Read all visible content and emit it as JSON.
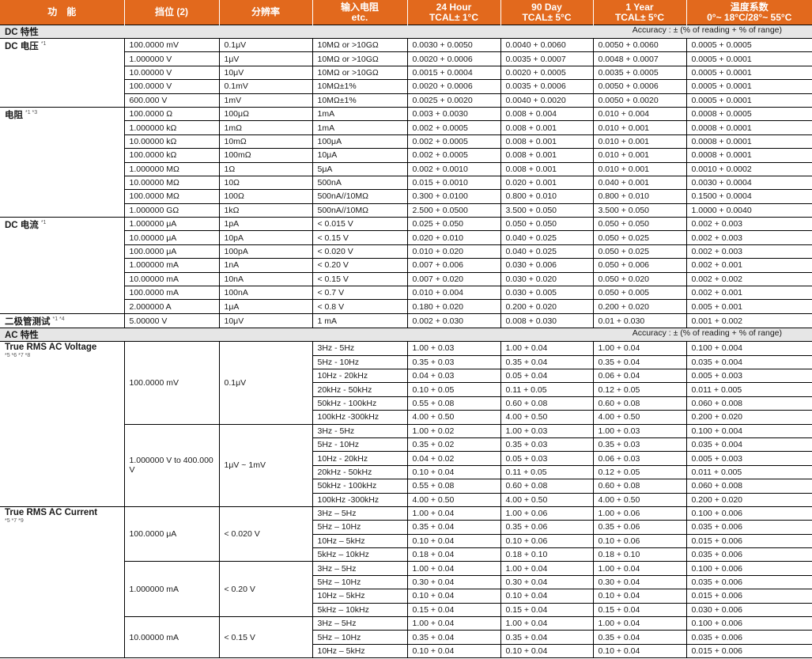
{
  "header": [
    "功　能",
    "挡位 (2)",
    "分辨率",
    "输入电阻\netc.",
    "24 Hour\nTCAL± 1°C",
    "90 Day\nTCAL± 5°C",
    "1 Year\nTCAL± 5°C",
    "温度系数\n0°~ 18°C/28°~ 55°C"
  ],
  "colors": {
    "header_bg": "#e2691d",
    "section_bg": "#e6e6e6"
  },
  "sections": [
    {
      "title": "DC 特性",
      "note": "Accuracy : ± (% of reading + % of range)",
      "groups": [
        {
          "function": "DC 电压",
          "sup": "*1",
          "rows": [
            [
              "100.0000 mV",
              "0.1μV",
              "10MΩ or >10GΩ",
              "0.0030 + 0.0050",
              "0.0040 + 0.0060",
              "0.0050 + 0.0060",
              "0.0005 + 0.0005"
            ],
            [
              "1.000000 V",
              "1μV",
              "10MΩ or >10GΩ",
              "0.0020 + 0.0006",
              "0.0035 + 0.0007",
              "0.0048 + 0.0007",
              "0.0005 + 0.0001"
            ],
            [
              "10.00000 V",
              "10μV",
              "10MΩ or >10GΩ",
              "0.0015 + 0.0004",
              "0.0020 + 0.0005",
              "0.0035 + 0.0005",
              "0.0005 + 0.0001"
            ],
            [
              "100.0000 V",
              "0.1mV",
              "10MΩ±1%",
              "0.0020 + 0.0006",
              "0.0035 + 0.0006",
              "0.0050 + 0.0006",
              "0.0005 + 0.0001"
            ],
            [
              "600.000 V",
              "1mV",
              "10MΩ±1%",
              "0.0025 + 0.0020",
              "0.0040 + 0.0020",
              "0.0050 + 0.0020",
              "0.0005 + 0.0001"
            ]
          ]
        },
        {
          "function": "电阻",
          "sup": "*1 *3",
          "rows": [
            [
              "100.0000 Ω",
              "100μΩ",
              "1mA",
              "0.003 + 0.0030",
              "0.008 + 0.004",
              "0.010 + 0.004",
              "0.0008 + 0.0005"
            ],
            [
              "1.000000 kΩ",
              "1mΩ",
              "1mA",
              "0.002 + 0.0005",
              "0.008 + 0.001",
              "0.010 + 0.001",
              "0.0008 + 0.0001"
            ],
            [
              "10.00000 kΩ",
              "10mΩ",
              "100μA",
              "0.002 + 0.0005",
              "0.008 + 0.001",
              "0.010 + 0.001",
              "0.0008 + 0.0001"
            ],
            [
              "100.0000 kΩ",
              "100mΩ",
              "10μA",
              "0.002 + 0.0005",
              "0.008 + 0.001",
              "0.010 + 0.001",
              "0.0008 + 0.0001"
            ],
            [
              "1.000000 MΩ",
              "1Ω",
              "5μA",
              "0.002 + 0.0010",
              "0.008 + 0.001",
              "0.010 + 0.001",
              "0.0010 + 0.0002"
            ],
            [
              "10.00000 MΩ",
              "10Ω",
              "500nA",
              "0.015 + 0.0010",
              "0.020 + 0.001",
              "0.040 + 0.001",
              "0.0030 + 0.0004"
            ],
            [
              "100.0000 MΩ",
              "100Ω",
              "500nA//10MΩ",
              "0.300 + 0.0100",
              "0.800 + 0.010",
              "0.800 + 0.010",
              "0.1500 + 0.0004"
            ],
            [
              "1.000000 GΩ",
              "1kΩ",
              "500nA//10MΩ",
              "2.500 + 0.0500",
              "3.500 + 0.050",
              "3.500 + 0.050",
              "1.0000 + 0.0040"
            ]
          ]
        },
        {
          "function": "DC 电流",
          "sup": "*1",
          "rows": [
            [
              "1.000000 μA",
              "1pA",
              "< 0.015 V",
              "0.025 + 0.050",
              "0.050 + 0.050",
              "0.050 + 0.050",
              "0.002 + 0.003"
            ],
            [
              "10.00000 μA",
              "10pA",
              "< 0.15 V",
              "0.020 + 0.010",
              "0.040 + 0.025",
              "0.050 + 0.025",
              "0.002 + 0.003"
            ],
            [
              "100.0000 μA",
              "100pA",
              "< 0.020 V",
              "0.010 + 0.020",
              "0.040 + 0.025",
              "0.050 + 0.025",
              "0.002 + 0.003"
            ],
            [
              "1.000000 mA",
              "1nA",
              "< 0.20 V",
              "0.007 + 0.006",
              "0.030 + 0.006",
              "0.050 + 0.006",
              "0.002 + 0.001"
            ],
            [
              "10.00000 mA",
              "10nA",
              "< 0.15 V",
              "0.007 + 0.020",
              "0.030 + 0.020",
              "0.050 + 0.020",
              "0.002 + 0.002"
            ],
            [
              "100.0000 mA",
              "100nA",
              "< 0.7 V",
              "0.010 + 0.004",
              "0.030 + 0.005",
              "0.050 + 0.005",
              "0.002 + 0.001"
            ],
            [
              "2.000000 A",
              "1μA",
              "< 0.8 V",
              "0.180 + 0.020",
              "0.200 + 0.020",
              "0.200 + 0.020",
              "0.005 + 0.001"
            ]
          ]
        },
        {
          "function": "二极管测试",
          "sup": "*1 *4",
          "rows": [
            [
              "5.00000 V",
              "10μV",
              "1 mA",
              "0.002 + 0.030",
              "0.008 + 0.030",
              "0.01 + 0.030",
              "0.001 + 0.002"
            ]
          ]
        }
      ]
    },
    {
      "title": "AC 特性",
      "note": "Accuracy : ± (% of reading + % of range)",
      "groups": [
        {
          "function": "True RMS AC Voltage",
          "sup": "*5 *6 *7 *8",
          "subgroups": [
            {
              "range": "100.0000 mV",
              "resolution": "0.1μV",
              "rows": [
                [
                  "3Hz - 5Hz",
                  "1.00 + 0.03",
                  "1.00 + 0.04",
                  "1.00 + 0.04",
                  "0.100 + 0.004"
                ],
                [
                  "5Hz - 10Hz",
                  "0.35 + 0.03",
                  "0.35 + 0.04",
                  "0.35 + 0.04",
                  "0.035 + 0.004"
                ],
                [
                  "10Hz - 20kHz",
                  "0.04 + 0.03",
                  "0.05 + 0.04",
                  "0.06 + 0.04",
                  "0.005 + 0.003"
                ],
                [
                  "20kHz - 50kHz",
                  "0.10 + 0.05",
                  "0.11 + 0.05",
                  "0.12 + 0.05",
                  "0.011 + 0.005"
                ],
                [
                  "50kHz - 100kHz",
                  "0.55 + 0.08",
                  "0.60 + 0.08",
                  "0.60 + 0.08",
                  "0.060 + 0.008"
                ],
                [
                  "100kHz -300kHz",
                  "4.00 + 0.50",
                  "4.00 + 0.50",
                  "4.00 + 0.50",
                  "0.200 + 0.020"
                ]
              ]
            },
            {
              "range": "1.000000 V  to 400.000 V",
              "resolution": "1μV ~ 1mV",
              "rows": [
                [
                  "3Hz - 5Hz",
                  "1.00 + 0.02",
                  "1.00 + 0.03",
                  "1.00 + 0.03",
                  "0.100 + 0.004"
                ],
                [
                  "5Hz - 10Hz",
                  "0.35 + 0.02",
                  "0.35 + 0.03",
                  "0.35 + 0.03",
                  "0.035 + 0.004"
                ],
                [
                  "10Hz - 20kHz",
                  "0.04 + 0.02",
                  "0.05 + 0.03",
                  "0.06 + 0.03",
                  "0.005 + 0.003"
                ],
                [
                  "20kHz - 50kHz",
                  "0.10 + 0.04",
                  "0.11 + 0.05",
                  "0.12 + 0.05",
                  "0.011 + 0.005"
                ],
                [
                  "50kHz - 100kHz",
                  "0.55 + 0.08",
                  "0.60 + 0.08",
                  "0.60 + 0.08",
                  "0.060 + 0.008"
                ],
                [
                  "100kHz -300kHz",
                  "4.00 + 0.50",
                  "4.00 + 0.50",
                  "4.00 + 0.50",
                  "0.200 + 0.020"
                ]
              ]
            }
          ]
        },
        {
          "function": "True RMS AC Current",
          "sup": "*5 *7 *9",
          "subgroups": [
            {
              "range": "100.0000 μA",
              "resolution": "< 0.020 V",
              "rows": [
                [
                  "3Hz – 5Hz",
                  "1.00 + 0.04",
                  "1.00 + 0.06",
                  "1.00 + 0.06",
                  "0.100 + 0.006"
                ],
                [
                  "5Hz – 10Hz",
                  "0.35 + 0.04",
                  "0.35 + 0.06",
                  "0.35 + 0.06",
                  "0.035 + 0.006"
                ],
                [
                  "10Hz – 5kHz",
                  "0.10 + 0.04",
                  "0.10 + 0.06",
                  "0.10 + 0.06",
                  "0.015 + 0.006"
                ],
                [
                  "5kHz – 10kHz",
                  "0.18 + 0.04",
                  "0.18 + 0.10",
                  "0.18 + 0.10",
                  "0.035 + 0.006"
                ]
              ]
            },
            {
              "range": "1.000000 mA",
              "resolution": "< 0.20 V",
              "rows": [
                [
                  "3Hz – 5Hz",
                  "1.00 + 0.04",
                  "1.00 + 0.04",
                  "1.00 + 0.04",
                  "0.100 + 0.006"
                ],
                [
                  "5Hz – 10Hz",
                  "0.30 + 0.04",
                  "0.30 + 0.04",
                  "0.30 + 0.04",
                  "0.035 + 0.006"
                ],
                [
                  "10Hz – 5kHz",
                  "0.10 + 0.04",
                  "0.10 + 0.04",
                  "0.10 + 0.04",
                  "0.015 + 0.006"
                ],
                [
                  "5kHz – 10kHz",
                  "0.15 + 0.04",
                  "0.15 + 0.04",
                  "0.15 + 0.04",
                  "0.030 + 0.006"
                ]
              ]
            },
            {
              "range": "10.00000 mA",
              "resolution": "< 0.15 V",
              "rows": [
                [
                  "3Hz – 5Hz",
                  "1.00 + 0.04",
                  "1.00 + 0.04",
                  "1.00 + 0.04",
                  "0.100 + 0.006"
                ],
                [
                  "5Hz – 10Hz",
                  "0.35 + 0.04",
                  "0.35 + 0.04",
                  "0.35 + 0.04",
                  "0.035 + 0.006"
                ],
                [
                  "10Hz – 5kHz",
                  "0.10 + 0.04",
                  "0.10 + 0.04",
                  "0.10 + 0.04",
                  "0.015 + 0.006"
                ]
              ]
            }
          ]
        }
      ]
    }
  ]
}
